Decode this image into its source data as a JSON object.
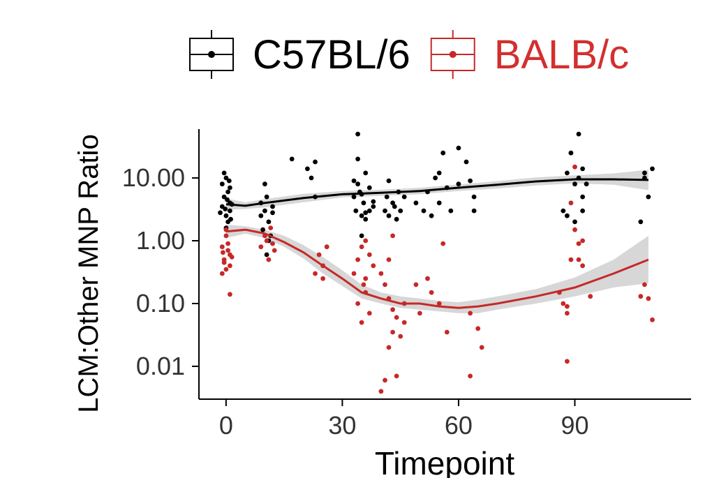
{
  "chart_data": {
    "type": "scatter",
    "xlabel": "Timepoint",
    "ylabel": "LCM:Other MNP Ratio",
    "xlim": [
      -7,
      120
    ],
    "xticks": [
      0,
      30,
      60,
      90
    ],
    "y_scale": "log10",
    "ylim": [
      0.003,
      60
    ],
    "yticks": [
      0.01,
      0.1,
      1,
      10
    ],
    "ytick_labels": [
      "0.01",
      "0.10",
      "1.00",
      "10.00"
    ],
    "legend": {
      "position": "top",
      "show_boxplot_key": true
    },
    "series": [
      {
        "name": "C57BL/6",
        "color": "#000000",
        "points": [
          [
            -1,
            3.5
          ],
          [
            -0.5,
            5
          ],
          [
            0,
            2.5
          ],
          [
            0.5,
            6
          ],
          [
            1,
            3
          ],
          [
            -1,
            8
          ],
          [
            0,
            10
          ],
          [
            1,
            4
          ],
          [
            0.5,
            2
          ],
          [
            -0.5,
            12
          ],
          [
            0,
            1.6
          ],
          [
            1,
            7
          ],
          [
            1.5,
            3.8
          ],
          [
            -1.5,
            2.8
          ],
          [
            0.3,
            4.5
          ],
          [
            0.8,
            9
          ],
          [
            -0.2,
            3.2
          ],
          [
            1.2,
            2.2
          ],
          [
            9,
            2.5
          ],
          [
            9.5,
            1.5
          ],
          [
            10,
            3
          ],
          [
            10.5,
            5
          ],
          [
            11,
            2
          ],
          [
            11.5,
            1.2
          ],
          [
            12,
            3.5
          ],
          [
            10,
            8
          ],
          [
            11,
            1
          ],
          [
            10.5,
            0.6
          ],
          [
            12,
            2.8
          ],
          [
            9,
            4
          ],
          [
            17,
            20
          ],
          [
            21,
            14
          ],
          [
            22,
            10
          ],
          [
            23,
            18
          ],
          [
            23,
            5
          ],
          [
            33,
            5
          ],
          [
            33.5,
            3
          ],
          [
            34,
            8
          ],
          [
            34.5,
            6
          ],
          [
            35,
            2.5
          ],
          [
            35.5,
            4
          ],
          [
            36,
            12
          ],
          [
            34,
            20
          ],
          [
            36,
            2.2
          ],
          [
            37,
            7
          ],
          [
            38,
            3.5
          ],
          [
            38,
            4.2
          ],
          [
            33,
            9
          ],
          [
            35,
            5.5
          ],
          [
            34,
            50
          ],
          [
            36,
            2.8
          ],
          [
            37,
            3
          ],
          [
            35,
            1.2
          ],
          [
            41,
            3
          ],
          [
            41.5,
            5
          ],
          [
            42,
            2.5
          ],
          [
            43,
            4
          ],
          [
            43.5,
            3.5
          ],
          [
            44,
            2.2
          ],
          [
            44.5,
            6
          ],
          [
            45,
            3
          ],
          [
            42,
            9
          ],
          [
            46,
            5
          ],
          [
            49,
            4
          ],
          [
            51,
            3
          ],
          [
            52,
            6
          ],
          [
            53,
            2.5
          ],
          [
            54,
            10
          ],
          [
            55,
            4
          ],
          [
            56,
            25
          ],
          [
            57,
            7
          ],
          [
            60,
            30
          ],
          [
            58,
            3
          ],
          [
            60,
            8
          ],
          [
            63,
            9
          ],
          [
            64,
            5
          ],
          [
            64,
            3
          ],
          [
            55,
            12
          ],
          [
            62,
            18
          ],
          [
            88,
            12
          ],
          [
            89,
            25
          ],
          [
            90,
            8
          ],
          [
            91,
            10
          ],
          [
            92,
            5
          ],
          [
            91,
            50
          ],
          [
            92,
            14
          ],
          [
            93,
            8
          ],
          [
            92,
            3
          ],
          [
            87,
            3
          ],
          [
            88,
            2.5
          ],
          [
            90,
            2
          ],
          [
            107,
            2
          ],
          [
            108,
            12
          ],
          [
            109,
            5
          ],
          [
            110,
            14
          ],
          [
            108,
            10
          ]
        ]
      },
      {
        "name": "BALB/c",
        "color": "#c62828",
        "points": [
          [
            -1,
            0.8
          ],
          [
            -0.5,
            0.5
          ],
          [
            0,
            1.2
          ],
          [
            0.5,
            0.7
          ],
          [
            1,
            0.4
          ],
          [
            -1,
            0.3
          ],
          [
            0,
            1.5
          ],
          [
            1,
            0.6
          ],
          [
            0.5,
            0.9
          ],
          [
            -0.5,
            0.45
          ],
          [
            1.5,
            0.55
          ],
          [
            1,
            0.14
          ],
          [
            0,
            0.35
          ],
          [
            -0.8,
            0.65
          ],
          [
            9,
            0.8
          ],
          [
            10,
            1.2
          ],
          [
            11,
            0.5
          ],
          [
            12,
            0.9
          ],
          [
            11.5,
            1.6
          ],
          [
            12.5,
            0.7
          ],
          [
            10.5,
            1
          ],
          [
            24,
            0.6
          ],
          [
            25,
            0.4
          ],
          [
            23,
            0.3
          ],
          [
            25,
            0.25
          ],
          [
            26,
            0.8
          ],
          [
            33,
            0.3
          ],
          [
            34,
            0.5
          ],
          [
            35,
            0.8
          ],
          [
            35.5,
            0.2
          ],
          [
            36,
            1
          ],
          [
            37,
            0.6
          ],
          [
            36,
            0.15
          ],
          [
            34,
            0.1
          ],
          [
            38,
            0.4
          ],
          [
            37,
            0.07
          ],
          [
            35,
            0.05
          ],
          [
            36,
            0.25
          ],
          [
            40,
            0.3
          ],
          [
            41,
            0.2
          ],
          [
            42,
            0.5
          ],
          [
            43,
            0.08
          ],
          [
            44,
            0.06
          ],
          [
            42,
            0.12
          ],
          [
            45,
            0.03
          ],
          [
            46,
            0.1
          ],
          [
            43,
            0.035
          ],
          [
            40,
            0.004
          ],
          [
            41,
            0.006
          ],
          [
            42,
            0.02
          ],
          [
            44,
            0.007
          ],
          [
            46,
            0.05
          ],
          [
            43,
            1.2
          ],
          [
            49,
            0.2
          ],
          [
            50,
            0.07
          ],
          [
            52,
            0.25
          ],
          [
            53,
            0.15
          ],
          [
            55,
            0.1
          ],
          [
            56,
            0.9
          ],
          [
            57,
            0.035
          ],
          [
            63,
            0.07
          ],
          [
            65,
            0.04
          ],
          [
            63,
            0.007
          ],
          [
            66,
            0.02
          ],
          [
            86,
            0.15
          ],
          [
            87,
            0.1
          ],
          [
            88,
            0.07
          ],
          [
            89,
            0.5
          ],
          [
            90,
            1.5
          ],
          [
            91,
            0.9
          ],
          [
            92,
            0.4
          ],
          [
            92,
            1
          ],
          [
            94,
            0.13
          ],
          [
            88,
            0.012
          ],
          [
            89,
            4
          ],
          [
            90,
            15
          ],
          [
            91,
            0.5
          ],
          [
            88,
            0.09
          ],
          [
            107,
            0.13
          ],
          [
            108,
            0.2
          ],
          [
            109,
            0.12
          ],
          [
            110,
            0.055
          ]
        ]
      }
    ],
    "smooth_fits": [
      {
        "series": "C57BL/6",
        "x": [
          0,
          5,
          10,
          20,
          30,
          40,
          50,
          60,
          70,
          80,
          90,
          100,
          109
        ],
        "y": [
          3.8,
          3.6,
          4,
          4.8,
          5.5,
          5.8,
          6.2,
          7,
          7.8,
          8.8,
          9.5,
          9.5,
          9.3
        ],
        "ci_low": [
          3.1,
          3.2,
          3.4,
          4.1,
          4.9,
          5.2,
          5.5,
          6.2,
          6.8,
          7.6,
          8.2,
          7.8,
          6.4
        ],
        "ci_high": [
          4.7,
          4.1,
          4.6,
          5.6,
          6.2,
          6.5,
          7,
          7.9,
          8.9,
          10.2,
          11,
          11.8,
          13.5
        ]
      },
      {
        "series": "BALB/c",
        "x": [
          0,
          5,
          10,
          15,
          20,
          25,
          30,
          35,
          40,
          45,
          50,
          55,
          60,
          65,
          70,
          80,
          90,
          100,
          109
        ],
        "y": [
          1.4,
          1.5,
          1.3,
          0.95,
          0.65,
          0.4,
          0.25,
          0.15,
          0.12,
          0.1,
          0.1,
          0.09,
          0.085,
          0.09,
          0.1,
          0.13,
          0.18,
          0.3,
          0.5
        ],
        "ci_low": [
          1.1,
          1.3,
          1.1,
          0.8,
          0.52,
          0.3,
          0.19,
          0.12,
          0.1,
          0.085,
          0.08,
          0.075,
          0.07,
          0.07,
          0.08,
          0.1,
          0.13,
          0.18,
          0.21
        ],
        "ci_high": [
          1.8,
          1.7,
          1.5,
          1.2,
          0.85,
          0.55,
          0.34,
          0.2,
          0.15,
          0.13,
          0.12,
          0.11,
          0.105,
          0.115,
          0.13,
          0.17,
          0.26,
          0.5,
          1.2
        ]
      }
    ]
  }
}
